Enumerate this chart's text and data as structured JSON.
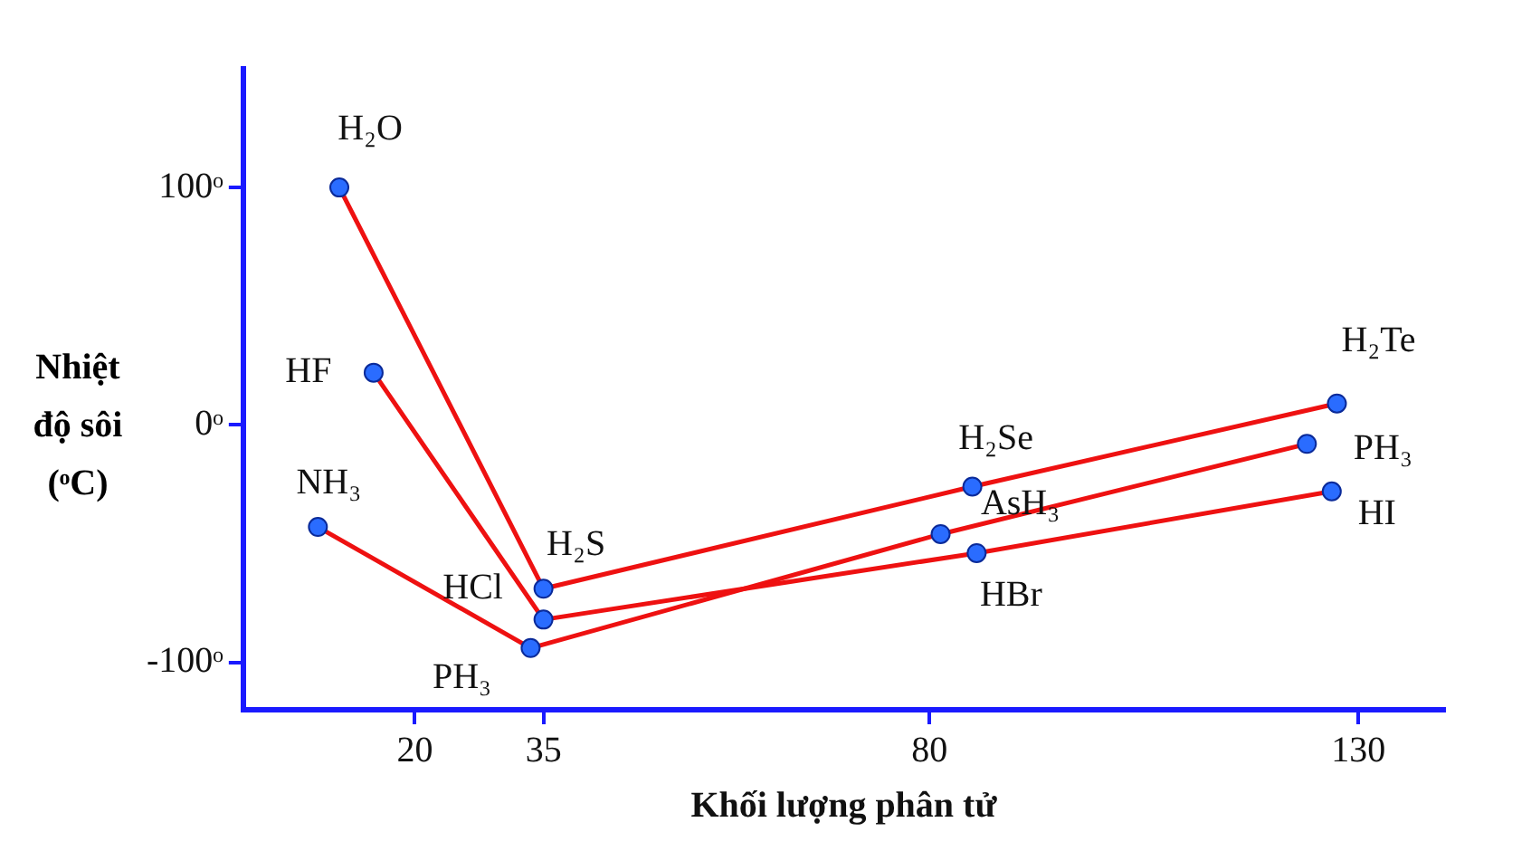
{
  "chart_data": {
    "type": "line",
    "xlabel": "Khối lượng phân tử",
    "ylabel": "Nhiệt độ sôi (ᵒC)",
    "xlim": [
      0,
      140
    ],
    "xticks": [
      20,
      35,
      80,
      130
    ],
    "ylim": [
      -120,
      150
    ],
    "yticks": [
      {
        "value": 100,
        "label": "100ᵒ"
      },
      {
        "value": 0,
        "label": "0ᵒ"
      },
      {
        "value": -100,
        "label": "-100ᵒ"
      }
    ],
    "grid": false,
    "legend": false,
    "marker": "circle",
    "line_style": "solid",
    "series": [
      {
        "color": "#ee1111",
        "x": [
          11.2,
          35,
          85,
          127.5
        ],
        "values": [
          100,
          -69,
          -26,
          9
        ]
      },
      {
        "color": "#ee1111",
        "x": [
          15.2,
          35,
          85.5,
          126.9
        ],
        "values": [
          22,
          -82,
          -54,
          -28
        ]
      },
      {
        "color": "#ee1111",
        "x": [
          8.7,
          33.5,
          81.3,
          124
        ],
        "values": [
          -43,
          -94,
          -46,
          -8
        ]
      }
    ],
    "annotations": [
      {
        "text": "H₂O",
        "x": 11.2,
        "y": 100
      },
      {
        "text": "HF",
        "x": 15.2,
        "y": 22
      },
      {
        "text": "NH₃",
        "x": 8.7,
        "y": -43
      },
      {
        "text": "H₂S",
        "x": 35,
        "y": -69
      },
      {
        "text": "HCl",
        "x": 35,
        "y": -82
      },
      {
        "text": "PH₃",
        "x": 33.5,
        "y": -94
      },
      {
        "text": "H₂Se",
        "x": 85,
        "y": -26
      },
      {
        "text": "AsH₃",
        "x": 81.3,
        "y": -46
      },
      {
        "text": "HBr",
        "x": 85.5,
        "y": -54
      },
      {
        "text": "H₂Te",
        "x": 127.5,
        "y": 9
      },
      {
        "text": "PH₃",
        "x": 124,
        "y": -8
      },
      {
        "text": "HI",
        "x": 126.9,
        "y": -28
      }
    ]
  }
}
